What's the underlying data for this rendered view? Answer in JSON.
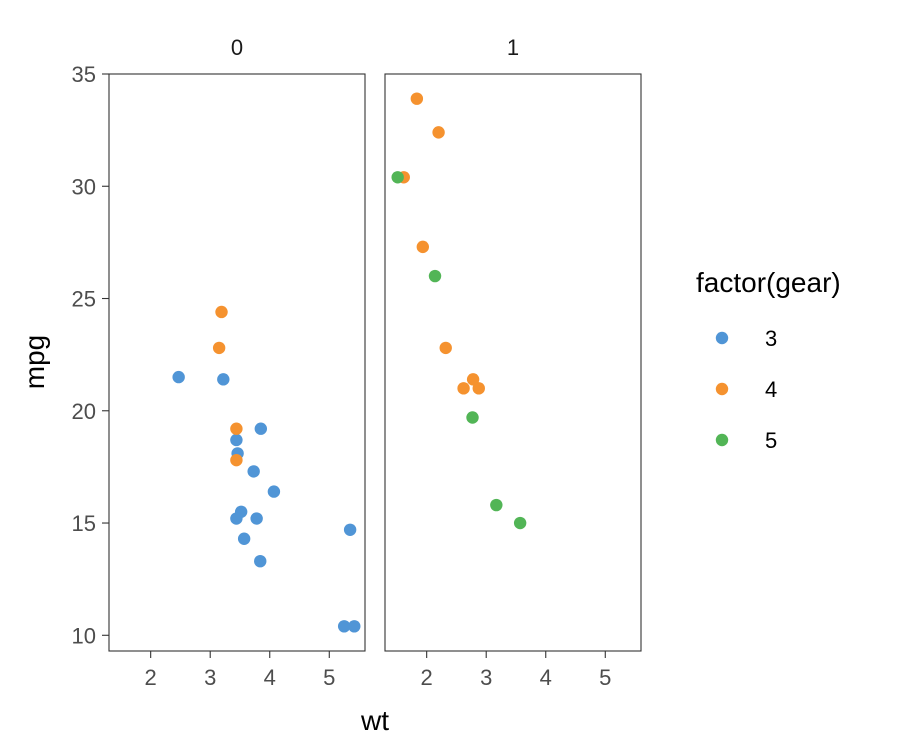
{
  "chart_data": {
    "type": "scatter",
    "facet_var": "am",
    "facets": [
      "0",
      "1"
    ],
    "xlabel": "wt",
    "ylabel": "mpg",
    "xlim": [
      1.3,
      5.6
    ],
    "ylim": [
      9.3,
      35.0
    ],
    "x_ticks": [
      2,
      3,
      4,
      5
    ],
    "y_ticks": [
      10,
      15,
      20,
      25,
      30,
      35
    ],
    "grid": false,
    "legend": {
      "title": "factor(gear)",
      "position": "right",
      "entries": [
        {
          "label": "3",
          "color": "#5095d6"
        },
        {
          "label": "4",
          "color": "#f5922f"
        },
        {
          "label": "5",
          "color": "#52b556"
        }
      ]
    },
    "points": [
      {
        "facet": "0",
        "gear": "3",
        "x": 2.47,
        "y": 21.5
      },
      {
        "facet": "0",
        "gear": "3",
        "x": 3.22,
        "y": 21.4
      },
      {
        "facet": "0",
        "gear": "3",
        "x": 3.44,
        "y": 18.7
      },
      {
        "facet": "0",
        "gear": "3",
        "x": 3.46,
        "y": 18.1
      },
      {
        "facet": "0",
        "gear": "3",
        "x": 3.57,
        "y": 14.3
      },
      {
        "facet": "0",
        "gear": "3",
        "x": 4.07,
        "y": 16.4
      },
      {
        "facet": "0",
        "gear": "3",
        "x": 3.73,
        "y": 17.3
      },
      {
        "facet": "0",
        "gear": "3",
        "x": 3.78,
        "y": 15.2
      },
      {
        "facet": "0",
        "gear": "3",
        "x": 5.25,
        "y": 10.4
      },
      {
        "facet": "0",
        "gear": "3",
        "x": 5.42,
        "y": 10.4
      },
      {
        "facet": "0",
        "gear": "3",
        "x": 5.35,
        "y": 14.7
      },
      {
        "facet": "0",
        "gear": "3",
        "x": 3.52,
        "y": 15.5
      },
      {
        "facet": "0",
        "gear": "3",
        "x": 3.44,
        "y": 15.2
      },
      {
        "facet": "0",
        "gear": "3",
        "x": 3.84,
        "y": 13.3
      },
      {
        "facet": "0",
        "gear": "3",
        "x": 3.85,
        "y": 19.2
      },
      {
        "facet": "0",
        "gear": "4",
        "x": 3.19,
        "y": 24.4
      },
      {
        "facet": "0",
        "gear": "4",
        "x": 3.15,
        "y": 22.8
      },
      {
        "facet": "0",
        "gear": "4",
        "x": 3.44,
        "y": 19.2
      },
      {
        "facet": "0",
        "gear": "4",
        "x": 3.44,
        "y": 17.8
      },
      {
        "facet": "1",
        "gear": "4",
        "x": 2.62,
        "y": 21.0
      },
      {
        "facet": "1",
        "gear": "4",
        "x": 2.875,
        "y": 21.0
      },
      {
        "facet": "1",
        "gear": "4",
        "x": 2.32,
        "y": 22.8
      },
      {
        "facet": "1",
        "gear": "4",
        "x": 2.2,
        "y": 32.4
      },
      {
        "facet": "1",
        "gear": "4",
        "x": 1.615,
        "y": 30.4
      },
      {
        "facet": "1",
        "gear": "4",
        "x": 1.835,
        "y": 33.9
      },
      {
        "facet": "1",
        "gear": "4",
        "x": 1.935,
        "y": 27.3
      },
      {
        "facet": "1",
        "gear": "4",
        "x": 2.78,
        "y": 21.4
      },
      {
        "facet": "1",
        "gear": "5",
        "x": 2.14,
        "y": 26.0
      },
      {
        "facet": "1",
        "gear": "5",
        "x": 1.513,
        "y": 30.4
      },
      {
        "facet": "1",
        "gear": "5",
        "x": 3.17,
        "y": 15.8
      },
      {
        "facet": "1",
        "gear": "5",
        "x": 2.77,
        "y": 19.7
      },
      {
        "facet": "1",
        "gear": "5",
        "x": 3.57,
        "y": 15.0
      }
    ]
  }
}
